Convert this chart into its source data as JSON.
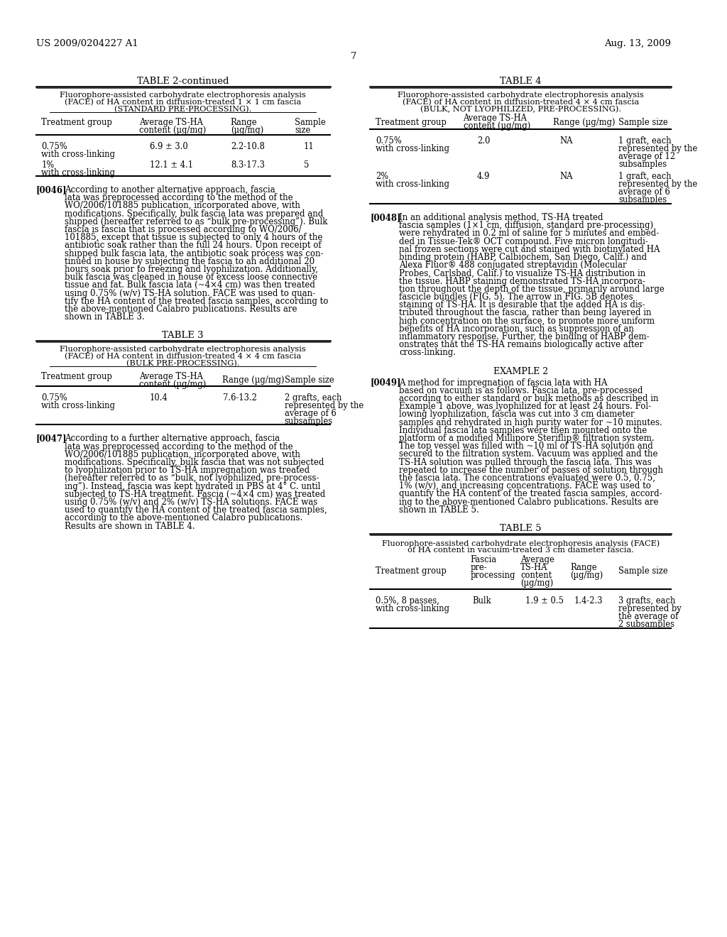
{
  "background_color": "#f0f0f0",
  "page_color": "#ffffff",
  "header_left": "US 2009/0204227 A1",
  "header_right": "Aug. 13, 2009",
  "page_number": "7",
  "table2_title": "TABLE 2-continued",
  "table2_caption1": "Fluorophore-assisted carbohydrate electrophoresis analysis",
  "table2_caption2": "(FACE) of HA content in diffusion-treated 1 × 1 cm fascia",
  "table2_caption3": "(STANDARD PRE-PROCESSING).",
  "table2_col1": "Treatment group",
  "table2_col2": "Average TS-HA\ncontent (µg/mg)",
  "table2_col3": "Range\n(µg/mg)",
  "table2_col4": "Sample\nsize",
  "table2_row1_c1": "0.75%\nwith cross-linking",
  "table2_row1_c2": "6.9 ± 3.0",
  "table2_row1_c3": "2.2-10.8",
  "table2_row1_c4": "11",
  "table2_row2_c1": "1%\nwith cross-linking",
  "table2_row2_c2": "12.1 ± 4.1",
  "table2_row2_c3": "8.3-17.3",
  "table2_row2_c4": "5",
  "table4_title": "TABLE 4",
  "table4_caption1": "Fluorophore-assisted carbohydrate electrophoresis analysis",
  "table4_caption2": "(FACE) of HA content in diffusion-treated 4 × 4 cm fascia",
  "table4_caption3": "(BULK, NOT LYOPHILIZED, PRE-PROCESSING).",
  "table4_col1": "Treatment group",
  "table4_col2": "Average TS-HA\ncontent (µg/mg)",
  "table4_col3": "Range (µg/mg)",
  "table4_col4": "Sample size",
  "table4_row1_c1": "0.75%\nwith cross-linking",
  "table4_row1_c2": "2.0",
  "table4_row1_c3": "NA",
  "table4_row1_c4": "1 graft, each\nrepresented by the\naverage of 12\nsubsamples",
  "table4_row2_c1": "2%\nwith cross-linking",
  "table4_row2_c2": "4.9",
  "table4_row2_c3": "NA",
  "table4_row2_c4": "1 graft, each\nrepresented by the\naverage of 6\nsubsamples",
  "para46_label": "[0046]",
  "para46_text": "According to another alternative approach, fascia lata was preprocessed according to the method of the WO/2006/101885 publication, incorporated above, with modifications. Specifically, bulk fascia lata was prepared and shipped (hereafter referred to as “bulk pre-processing”). Bulk fascia is fascia that is processed according to WO/2006/101885, except that tissue is subjected to only 4 hours of the antibiotic soak rather than the full 24 hours. Upon receipt of shipped bulk fascia lata, the antibiotic soak process was continued in house by subjecting the fascia to an additional 20 hours soak prior to freezing and lyophilization. Additionally, bulk fascia was cleaned in house of excess loose connective tissue and fat. Bulk fascia lata (~4×4 cm) was then treated using 0.75% (w/v) TS-HA solution. FACE was used to quantify the HA content of the treated fascia samples, according to the above-mentioned Calabro publications. Results are shown in TABLE 3.",
  "table3_title": "TABLE 3",
  "table3_caption1": "Fluorophore-assisted carbohydrate electrophoresis analysis",
  "table3_caption2": "(FACE) of HA content in diffusion-treated 4 × 4 cm fascia",
  "table3_caption3": "(BULK PRE-PROCESSING).",
  "table3_col1": "Treatment group",
  "table3_col2": "Average TS-HA\ncontent (µg/mg)",
  "table3_col3": "Range (µg/mg)",
  "table3_col4": "Sample size",
  "table3_row1_c1": "0.75%\nwith cross-linking",
  "table3_row1_c2": "10.4",
  "table3_row1_c3": "7.6-13.2",
  "table3_row1_c4": "2 grafts, each\nrepresented by the\naverage of 6\nsubsamples",
  "para47_label": "[0047]",
  "para47_text": "According to a further alternative approach, fascia lata was preprocessed according to the method of the WO/2006/101885 publication, incorporated above, with modifications. Specifically, bulk fascia that was not subjected to lyophilization prior to TS-HA impregnation was treated (hereafter referred to as “bulk, not lyophilized, pre-processing”). Instead, fascia was kept hydrated in PBS at 4° C. until subjected to TS-HA treatment. Fascia (~4×4 cm) was treated using 0.75% (w/v) and 2% (w/v) TS-HA solutions. FACE was used to quantify the HA content of the treated fascia samples, according to the above-mentioned Calabro publications. Results are shown in TABLE 4.",
  "para48_label": "[0048]",
  "para48_text": "In an additional analysis method, TS-HA treated fascia samples (1×1 cm, diffusion, standard pre-processing) were rehydrated in 0.2 ml of saline for 5 minutes and embedded in Tissue-Tek® OCT compound. Five micron longitudinal frozen sections were cut and stained with biotinylated HA binding protein (HABP, Calbiochem, San Diego, Calif.) and Alexa Fluor® 488 conjugated streptavidin (Molecular Probes, Carlsbad, Calif.) to visualize TS-HA distribution in the tissue. HABP staining demonstrated TS-HA incorporation throughout the depth of the tissue, primarily around large fascicle bundles (FIG. 5). The arrow in FIG. 5B denotes staining of TS-HA. It is desirable that the added HA is distributed throughout the fascia, rather than being layered in high concentration on the surface, to promote more uniform benefits of HA incorporation, such as suppression of an inflammatory response. Further, the binding of HABP demonstrates that the TS-HA remains biologically active after cross-linking.",
  "example2_title": "EXAMPLE 2",
  "para49_label": "[0049]",
  "para49_text": "A method for impregnation of fascia lata with HA based on vacuum is as follows. Fascia lata, pre-processed according to either standard or bulk methods as described in Example 1 above, was lyophilized for at least 24 hours. Following lyophilization, fascia was cut into 3 cm diameter samples and rehydrated in high purity water for ~10 minutes. Individual fascia lata samples were then mounted onto the platform of a modified Millipore Steriflip® filtration system. The top vessel was filled with ~10 ml of TS-HA solution and secured to the filtration system. Vacuum was applied and the TS-HA solution was pulled through the fascia lata. This was repeated to increase the number of passes of solution through the fascia lata. The concentrations evaluated were 0.5, 0.75, 1% (w/v), and increasing concentrations. FACE was used to quantify the HA content of the treated fascia samples, according to the above-mentioned Calabro publications. Results are shown in TABLE 5.",
  "table5_title": "TABLE 5",
  "table5_caption1": "Fluorophore-assisted carbohydrate electrophoresis analysis (FACE)",
  "table5_caption2": "of HA content in vacuum-treated 3 cm diameter fascia.",
  "table5_col1": "Treatment group",
  "table5_col2": "Fascia\npre-\nprocessing",
  "table5_col3": "Average\nTS-HA\ncontent\n(µg/mg)",
  "table5_col4": "Range\n(µg/mg)",
  "table5_col5": "Sample size",
  "table5_row1_c1": "0.5%, 8 passes,\nwith cross-linking",
  "table5_row1_c2": "Bulk",
  "table5_row1_c3": "1.9 ± 0.5",
  "table5_row1_c4": "1.4-2.3",
  "table5_row1_c5": "3 grafts, each\nrepresented by\nthe average of\n2 subsamples"
}
